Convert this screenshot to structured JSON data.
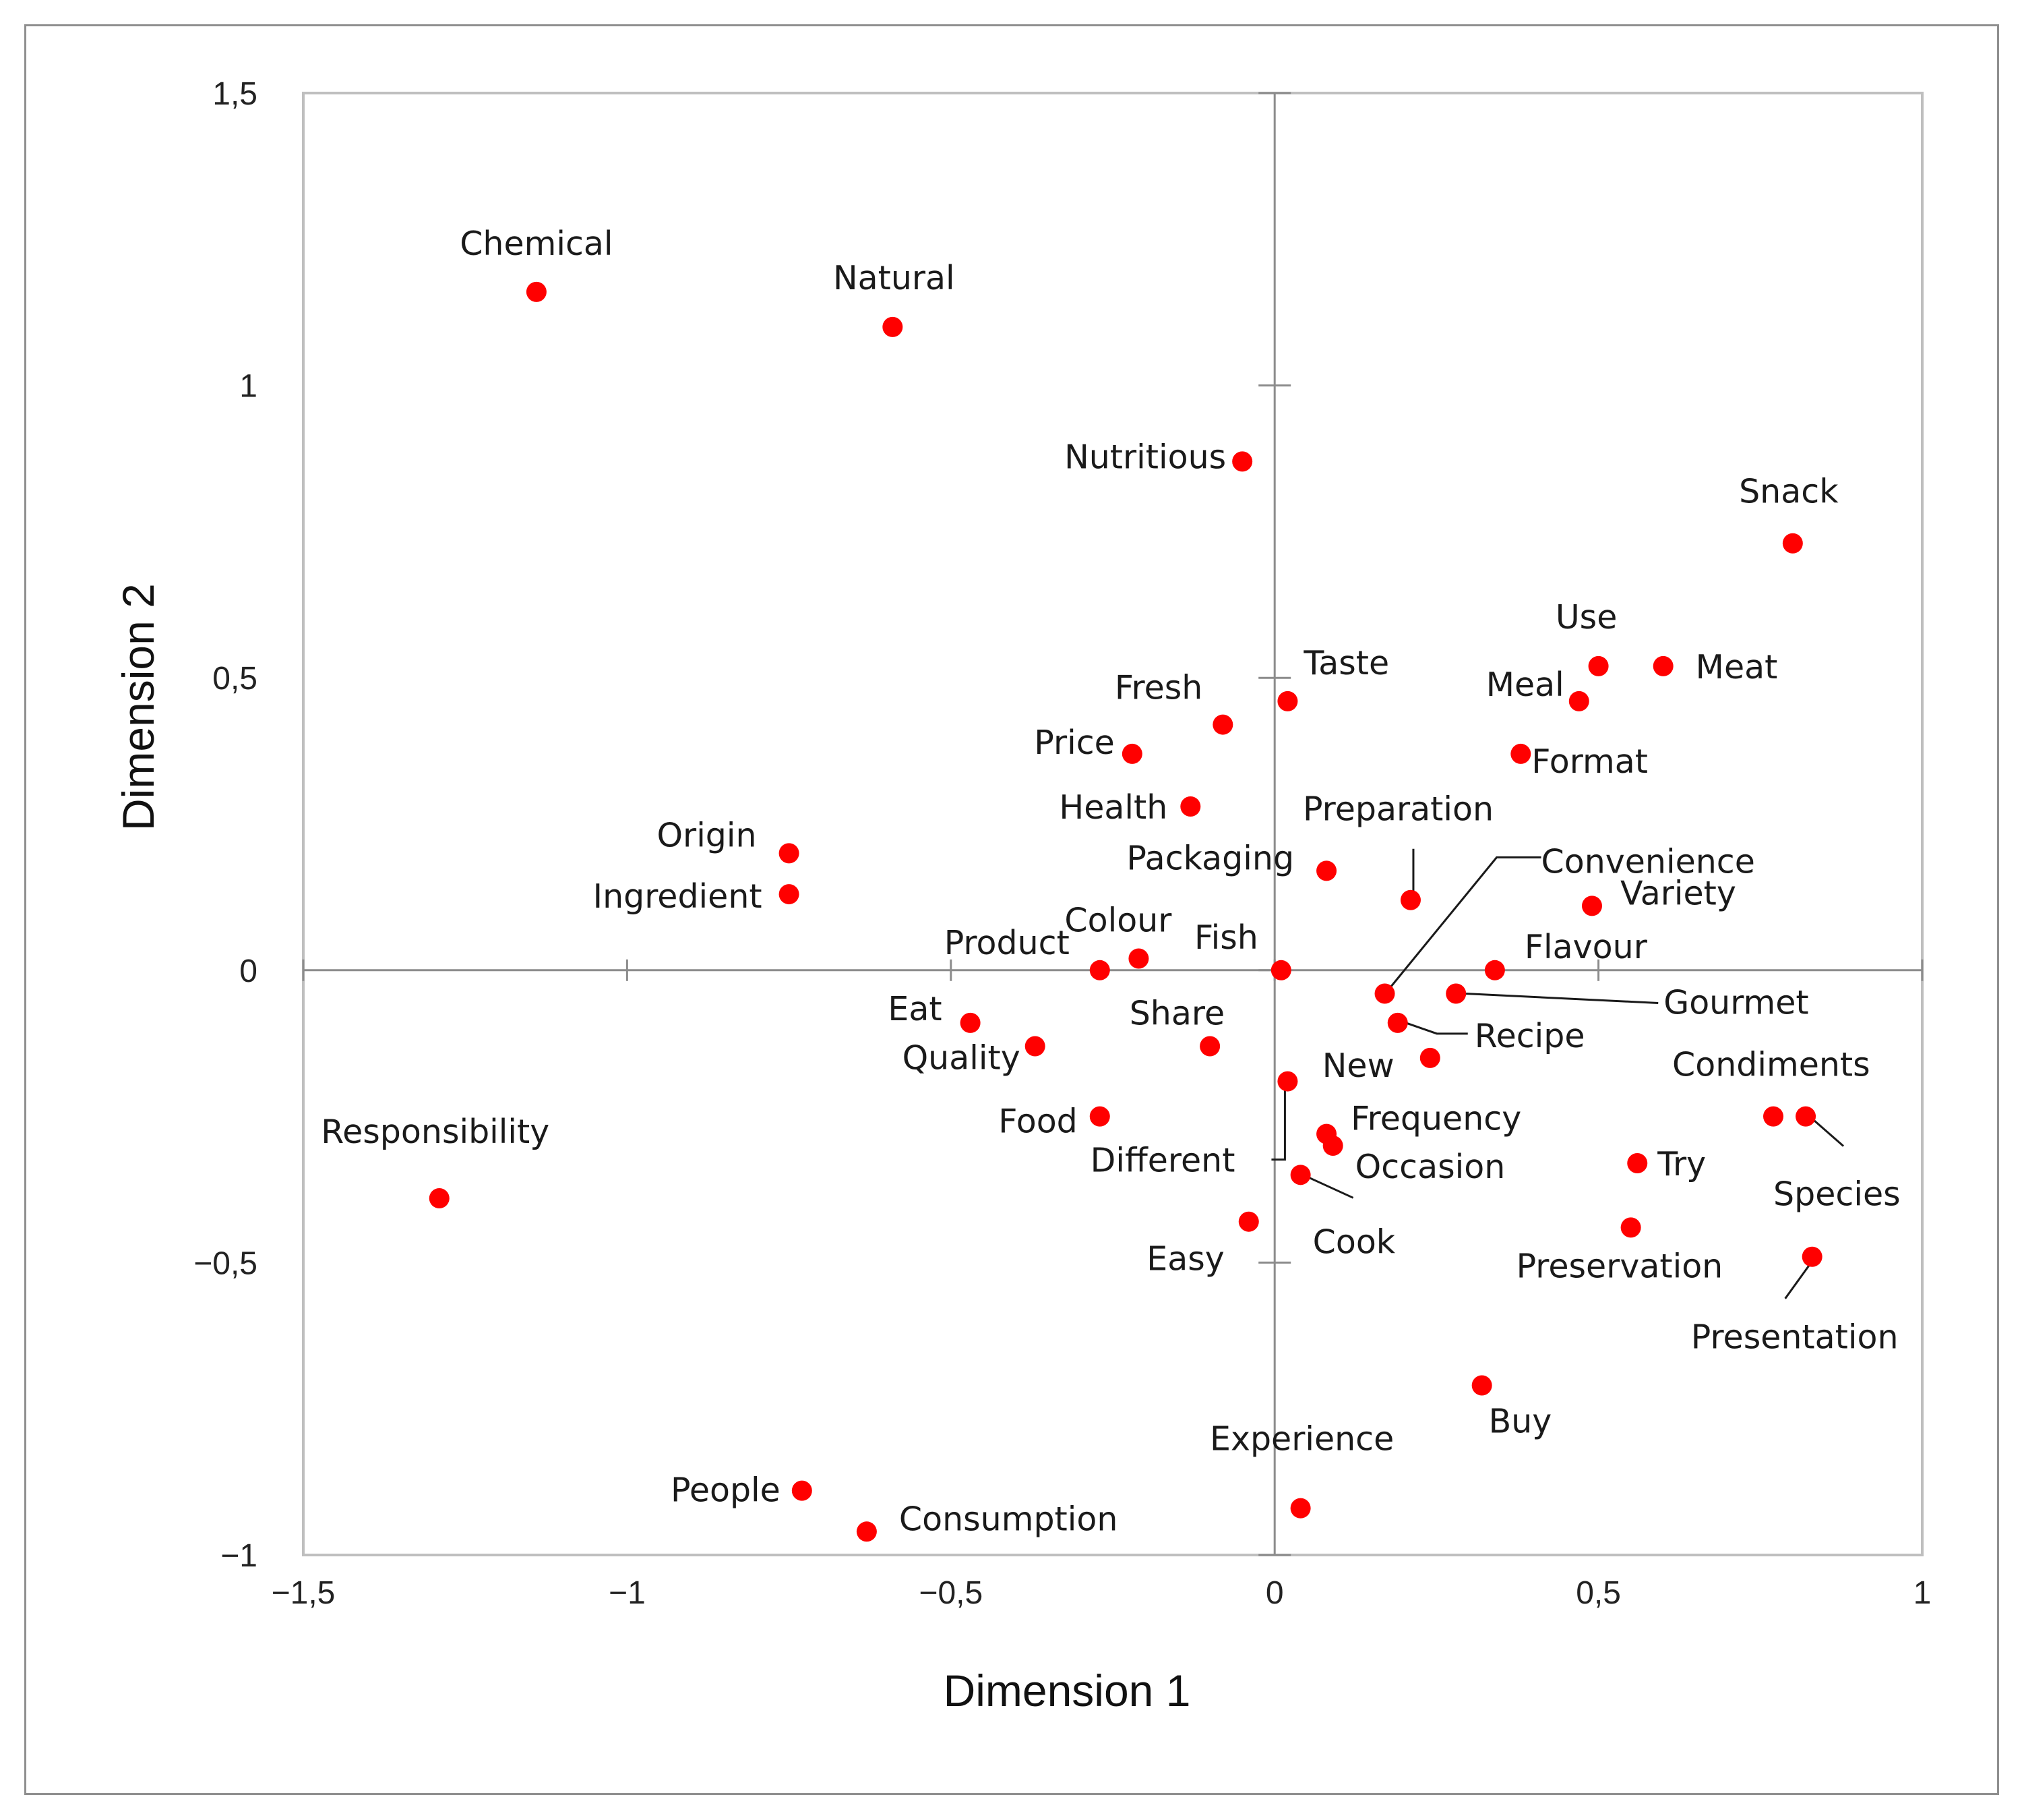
{
  "chart_data": {
    "type": "scatter",
    "title": "",
    "xlabel": "Dimension 1",
    "ylabel": "Dimension 2",
    "xlim": [
      -1.5,
      1
    ],
    "ylim": [
      -1,
      1.5
    ],
    "xticks": [
      -1.5,
      -1,
      -0.5,
      0,
      0.5,
      1
    ],
    "yticks": [
      -1,
      -0.5,
      0,
      0.5,
      1,
      1.5
    ],
    "xtick_labels": [
      "−1,5",
      "−1",
      "−0,5",
      "0",
      "0,5",
      "1"
    ],
    "ytick_labels": [
      "−1",
      "−0,5",
      "0",
      "0,5",
      "1",
      "1,5"
    ],
    "grid": false,
    "marker_color": "#ff0000",
    "points": [
      {
        "label": "Chemical",
        "x": -1.14,
        "y": 1.16
      },
      {
        "label": "Natural",
        "x": -0.59,
        "y": 1.1
      },
      {
        "label": "Nutritious",
        "x": -0.05,
        "y": 0.87
      },
      {
        "label": "Snack",
        "x": 0.8,
        "y": 0.73
      },
      {
        "label": "Use",
        "x": 0.5,
        "y": 0.52
      },
      {
        "label": "Meat",
        "x": 0.6,
        "y": 0.52
      },
      {
        "label": "Meal",
        "x": 0.47,
        "y": 0.46
      },
      {
        "label": "Taste",
        "x": 0.02,
        "y": 0.46
      },
      {
        "label": "Fresh",
        "x": -0.08,
        "y": 0.42
      },
      {
        "label": "Price",
        "x": -0.22,
        "y": 0.37
      },
      {
        "label": "Format",
        "x": 0.38,
        "y": 0.37
      },
      {
        "label": "Health",
        "x": -0.13,
        "y": 0.28
      },
      {
        "label": "Origin",
        "x": -0.75,
        "y": 0.2
      },
      {
        "label": "Ingredient",
        "x": -0.75,
        "y": 0.13
      },
      {
        "label": "Packaging",
        "x": 0.08,
        "y": 0.17
      },
      {
        "label": "Preparation",
        "x": 0.21,
        "y": 0.12
      },
      {
        "label": "Variety",
        "x": 0.49,
        "y": 0.11
      },
      {
        "label": "Convenience",
        "x": 0.17,
        "y": -0.04
      },
      {
        "label": "Colour",
        "x": -0.21,
        "y": 0.02
      },
      {
        "label": "Product",
        "x": -0.27,
        "y": 0.0
      },
      {
        "label": "Fish",
        "x": 0.01,
        "y": 0.0
      },
      {
        "label": "Flavour",
        "x": 0.34,
        "y": 0.0
      },
      {
        "label": "Gourmet",
        "x": 0.28,
        "y": -0.04
      },
      {
        "label": "Recipe",
        "x": 0.19,
        "y": -0.09
      },
      {
        "label": "Eat",
        "x": -0.47,
        "y": -0.09
      },
      {
        "label": "Quality",
        "x": -0.37,
        "y": -0.13
      },
      {
        "label": "Share",
        "x": -0.1,
        "y": -0.13
      },
      {
        "label": "New",
        "x": 0.24,
        "y": -0.15
      },
      {
        "label": "Different",
        "x": 0.02,
        "y": -0.19
      },
      {
        "label": "Food",
        "x": -0.27,
        "y": -0.25
      },
      {
        "label": "Condiments",
        "x": 0.77,
        "y": -0.25
      },
      {
        "label": "Species",
        "x": 0.82,
        "y": -0.25
      },
      {
        "label": "Frequency",
        "x": 0.08,
        "y": -0.28
      },
      {
        "label": "Occasion",
        "x": 0.09,
        "y": -0.3
      },
      {
        "label": "Try",
        "x": 0.56,
        "y": -0.33
      },
      {
        "label": "Cook",
        "x": 0.04,
        "y": -0.35
      },
      {
        "label": "Responsibility",
        "x": -1.29,
        "y": -0.39
      },
      {
        "label": "Easy",
        "x": -0.04,
        "y": -0.43
      },
      {
        "label": "Preservation",
        "x": 0.55,
        "y": -0.44
      },
      {
        "label": "Presentation",
        "x": 0.83,
        "y": -0.49
      },
      {
        "label": "Buy",
        "x": 0.32,
        "y": -0.71
      },
      {
        "label": "Experience",
        "x": 0.04,
        "y": -0.92
      },
      {
        "label": "People",
        "x": -0.73,
        "y": -0.89
      },
      {
        "label": "Consumption",
        "x": -0.63,
        "y": -0.96
      }
    ]
  }
}
